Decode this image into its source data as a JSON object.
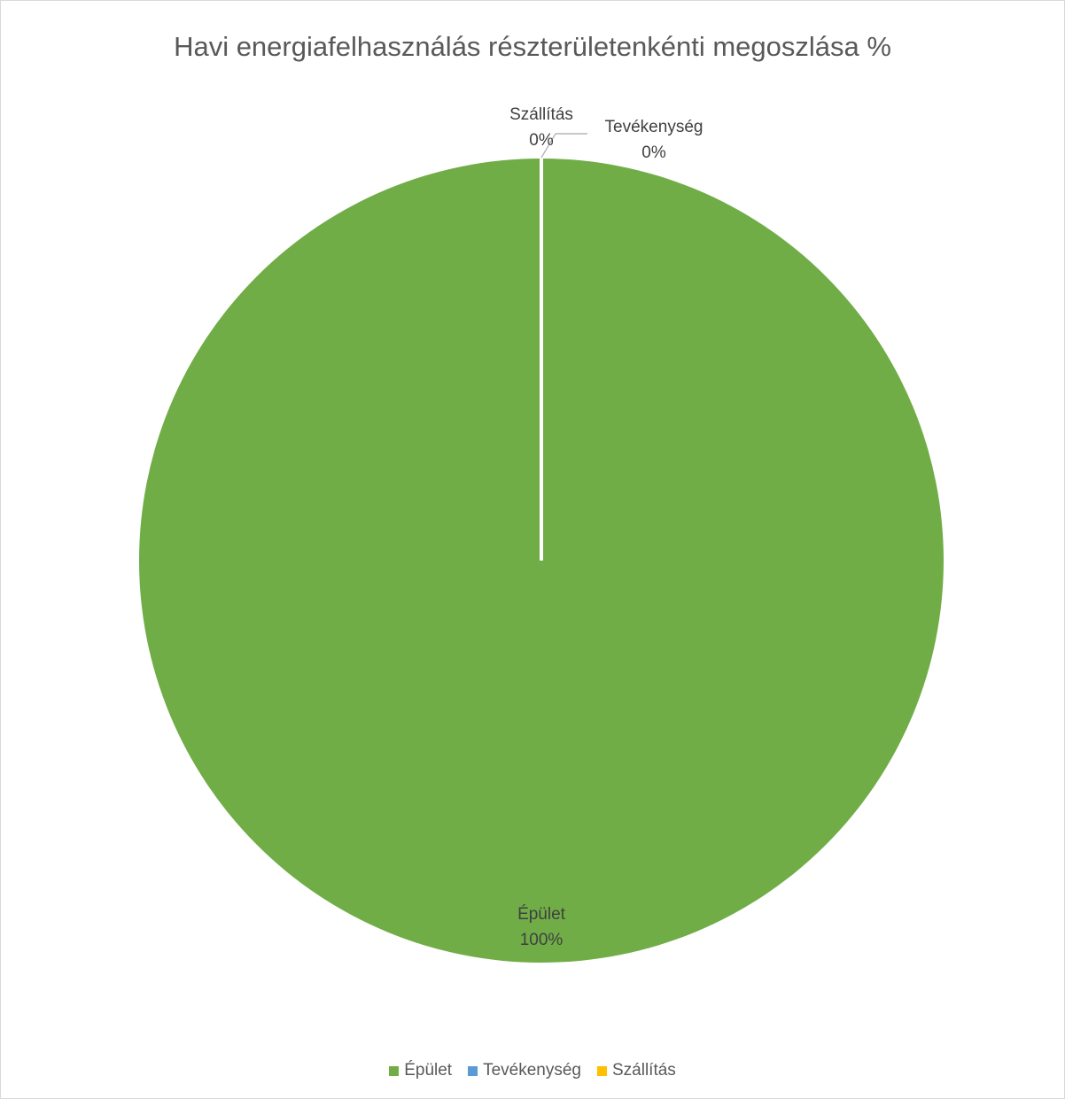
{
  "chart_data": {
    "type": "pie",
    "title": "Havi energiafelhasználás részterületenkénti megoszlása %",
    "slices": [
      {
        "label": "Épület",
        "value": 100,
        "display": "100%",
        "color": "#70ad47"
      },
      {
        "label": "Tevékenység",
        "value": 0,
        "display": "0%",
        "color": "#5b9bd5"
      },
      {
        "label": "Szállítás",
        "value": 0,
        "display": "0%",
        "color": "#ffc000"
      }
    ],
    "legend_position": "bottom"
  }
}
